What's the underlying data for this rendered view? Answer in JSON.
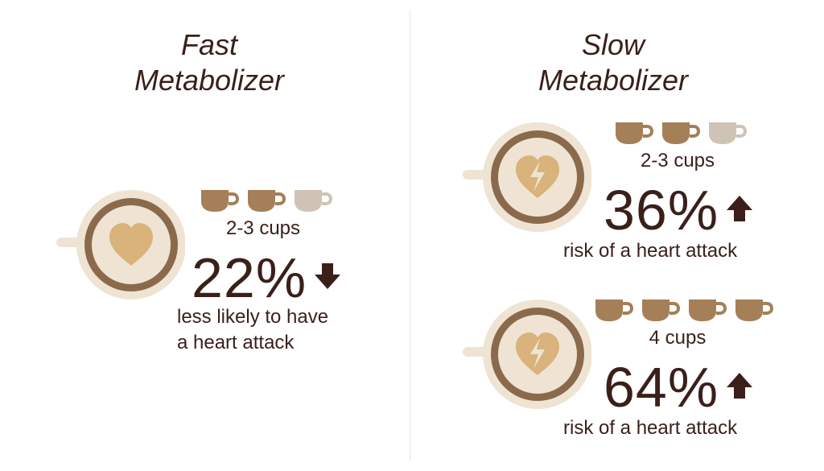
{
  "colors": {
    "dark_brown": "#3a1f1a",
    "cup_brown": "#a57f58",
    "cup_light": "#cfc3b5",
    "mug_outer": "#efe4d3",
    "mug_ring": "#8b6a4c",
    "heart": "#d9b27c",
    "divider": "#ece4d8"
  },
  "fast": {
    "title_line1": "Fast",
    "title_line2": "Metabolizer",
    "icon": "heart-icon",
    "cups": {
      "filled": 2,
      "total": 3,
      "label": "2-3 cups"
    },
    "percent": "22%",
    "direction": "down",
    "caption_line1": "less likely to have",
    "caption_line2": "a heart attack"
  },
  "slow": {
    "title_line1": "Slow",
    "title_line2": "Metabolizer",
    "groups": [
      {
        "icon": "broken-heart-icon",
        "cups": {
          "filled": 2,
          "total": 3,
          "label": "2-3 cups"
        },
        "percent": "36%",
        "direction": "up",
        "caption": "risk of a heart attack"
      },
      {
        "icon": "broken-heart-icon",
        "cups": {
          "filled": 4,
          "total": 4,
          "label": "4 cups"
        },
        "percent": "64%",
        "direction": "up",
        "caption": "risk of a heart attack"
      }
    ]
  }
}
